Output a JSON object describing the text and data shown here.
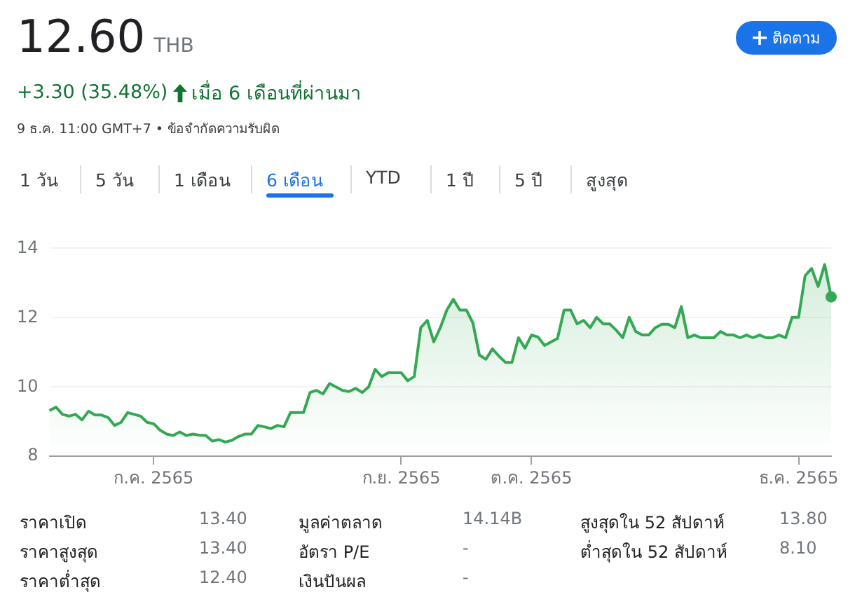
{
  "chart_data": {
    "type": "area",
    "title": "12.60",
    "annotations": [
      "THB",
      "+3.30 (35.48%)",
      "เมื่อ 6 เดือนที่ผ่านมา",
      "9 ธ.ค. 11:00 GMT+7 • ข้อจำกัดความรับผิด",
      "ติดตาม",
      "1 วัน",
      "5 วัน",
      "1 เดือน",
      "6 เดือน",
      "YTD",
      "1 ปี",
      "5 ปี",
      "สูงสุด",
      "ราคาเปิด",
      "13.40",
      "ราคาสูงสุด",
      "13.40",
      "ราคาต่ำสุด",
      "12.40",
      "มูลค่าตลาด",
      "14.14B",
      "อัตรา P/E",
      "-",
      "เงินปันผล",
      "-",
      "สูงสุดใน 52 สัปดาห์",
      "13.80",
      "ต่ำสุดใน 52 สัปดาห์",
      "8.10"
    ],
    "categories": [
      null,
      null,
      null,
      null,
      null,
      null,
      null,
      null,
      null,
      null,
      null,
      null,
      null,
      null,
      null,
      null,
      "ก.ค. 2565",
      null,
      null,
      null,
      null,
      null,
      null,
      null,
      null,
      null,
      null,
      null,
      null,
      null,
      null,
      null,
      null,
      null,
      null,
      null,
      null,
      null,
      null,
      null,
      null,
      null,
      null,
      null,
      null,
      null,
      null,
      null,
      null,
      null,
      null,
      null,
      null,
      null,
      "ก.ย. 2565",
      null,
      null,
      null,
      null,
      null,
      null,
      null,
      null,
      null,
      null,
      null,
      null,
      null,
      null,
      null,
      null,
      null,
      null,
      null,
      "ต.ค. 2565",
      null,
      null,
      null,
      null,
      null,
      null,
      null,
      null,
      null,
      null,
      null,
      null,
      null,
      null,
      null,
      null,
      null,
      null,
      null,
      null,
      null,
      null,
      null,
      null,
      null,
      null,
      null,
      null,
      null,
      null,
      null,
      null,
      null,
      null,
      null,
      null,
      null,
      null,
      null,
      null,
      "ธ.ค. 2565",
      null,
      null,
      null,
      null,
      null
    ],
    "series": [
      {
        "color": "#34a853",
        "values": [
          9.32,
          9.42,
          9.21,
          9.16,
          9.21,
          9.05,
          9.3,
          9.19,
          9.19,
          9.12,
          8.89,
          8.98,
          9.26,
          9.21,
          9.16,
          8.98,
          8.94,
          8.75,
          8.64,
          8.6,
          8.7,
          8.6,
          8.64,
          8.61,
          8.6,
          8.44,
          8.48,
          8.41,
          8.46,
          8.57,
          8.64,
          8.64,
          8.89,
          8.85,
          8.8,
          8.89,
          8.85,
          9.26,
          9.26,
          9.26,
          9.84,
          9.9,
          9.8,
          10.1,
          10.0,
          9.9,
          9.87,
          9.96,
          9.84,
          10.0,
          10.51,
          10.3,
          10.41,
          10.41,
          10.41,
          10.18,
          10.3,
          11.71,
          11.92,
          11.3,
          11.71,
          12.22,
          12.53,
          12.22,
          12.22,
          11.85,
          10.92,
          10.8,
          11.1,
          10.89,
          10.71,
          10.71,
          11.42,
          11.12,
          11.5,
          11.44,
          11.2,
          11.3,
          11.4,
          12.22,
          12.22,
          11.82,
          11.92,
          11.71,
          12.01,
          11.82,
          11.82,
          11.64,
          11.42,
          12.01,
          11.6,
          11.5,
          11.5,
          11.71,
          11.81,
          11.81,
          11.71,
          12.32,
          11.42,
          11.5,
          11.42,
          11.42,
          11.42,
          11.6,
          11.5,
          11.5,
          11.42,
          11.5,
          11.42,
          11.5,
          11.42,
          11.42,
          11.5,
          11.42,
          12.01,
          12.01,
          13.21,
          13.42,
          12.9,
          13.53,
          12.6
        ]
      }
    ],
    "ylim": [
      8,
      14
    ],
    "yticks": [
      8,
      10,
      12,
      14
    ],
    "grid": "y",
    "legend": false
  }
}
